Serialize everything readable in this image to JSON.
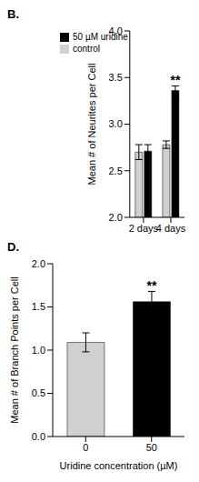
{
  "chart_data": [
    {
      "type": "bar",
      "title": "B.",
      "ylabel": "Mean # of Neurites per Cell",
      "categories": [
        "2 days",
        "4 days"
      ],
      "series": [
        {
          "name": "control",
          "color": "#d0d0d0",
          "values": [
            2.7,
            2.78
          ],
          "errors": [
            0.08,
            0.04
          ]
        },
        {
          "name": "50 µM uridine",
          "color": "#000000",
          "values": [
            2.71,
            3.36
          ],
          "errors": [
            0.07,
            0.05
          ]
        }
      ],
      "ylim": [
        2,
        4
      ],
      "yticks": [
        {
          "value": 2,
          "label": "2.0"
        },
        {
          "value": 2.5,
          "label": "2.5"
        },
        {
          "value": 3,
          "label": "3.0"
        },
        {
          "value": 3.5,
          "label": "3.5"
        },
        {
          "value": 4,
          "label": "4.0"
        }
      ],
      "legend": "upper left",
      "grid": false,
      "annotations": [
        {
          "text": "**",
          "category": "4 days",
          "series": "50 µM uridine"
        }
      ]
    },
    {
      "type": "bar",
      "title": "D.",
      "xlabel": "Uridine concentration (µM)",
      "ylabel": "Mean # of Branch Points per Cell",
      "categories": [
        "0",
        "50"
      ],
      "values": [
        1.09,
        1.56
      ],
      "errors": [
        0.11,
        0.12
      ],
      "colors": [
        "#d0d0d0",
        "#000000"
      ],
      "ylim": [
        0,
        2
      ],
      "yticks": [
        {
          "value": 0,
          "label": "0.0"
        },
        {
          "value": 0.5,
          "label": "0.5"
        },
        {
          "value": 1,
          "label": "1.0"
        },
        {
          "value": 1.5,
          "label": "1.5"
        },
        {
          "value": 2,
          "label": "2.0"
        }
      ],
      "grid": false,
      "annotations": [
        {
          "text": "**",
          "category": "50"
        }
      ]
    }
  ]
}
